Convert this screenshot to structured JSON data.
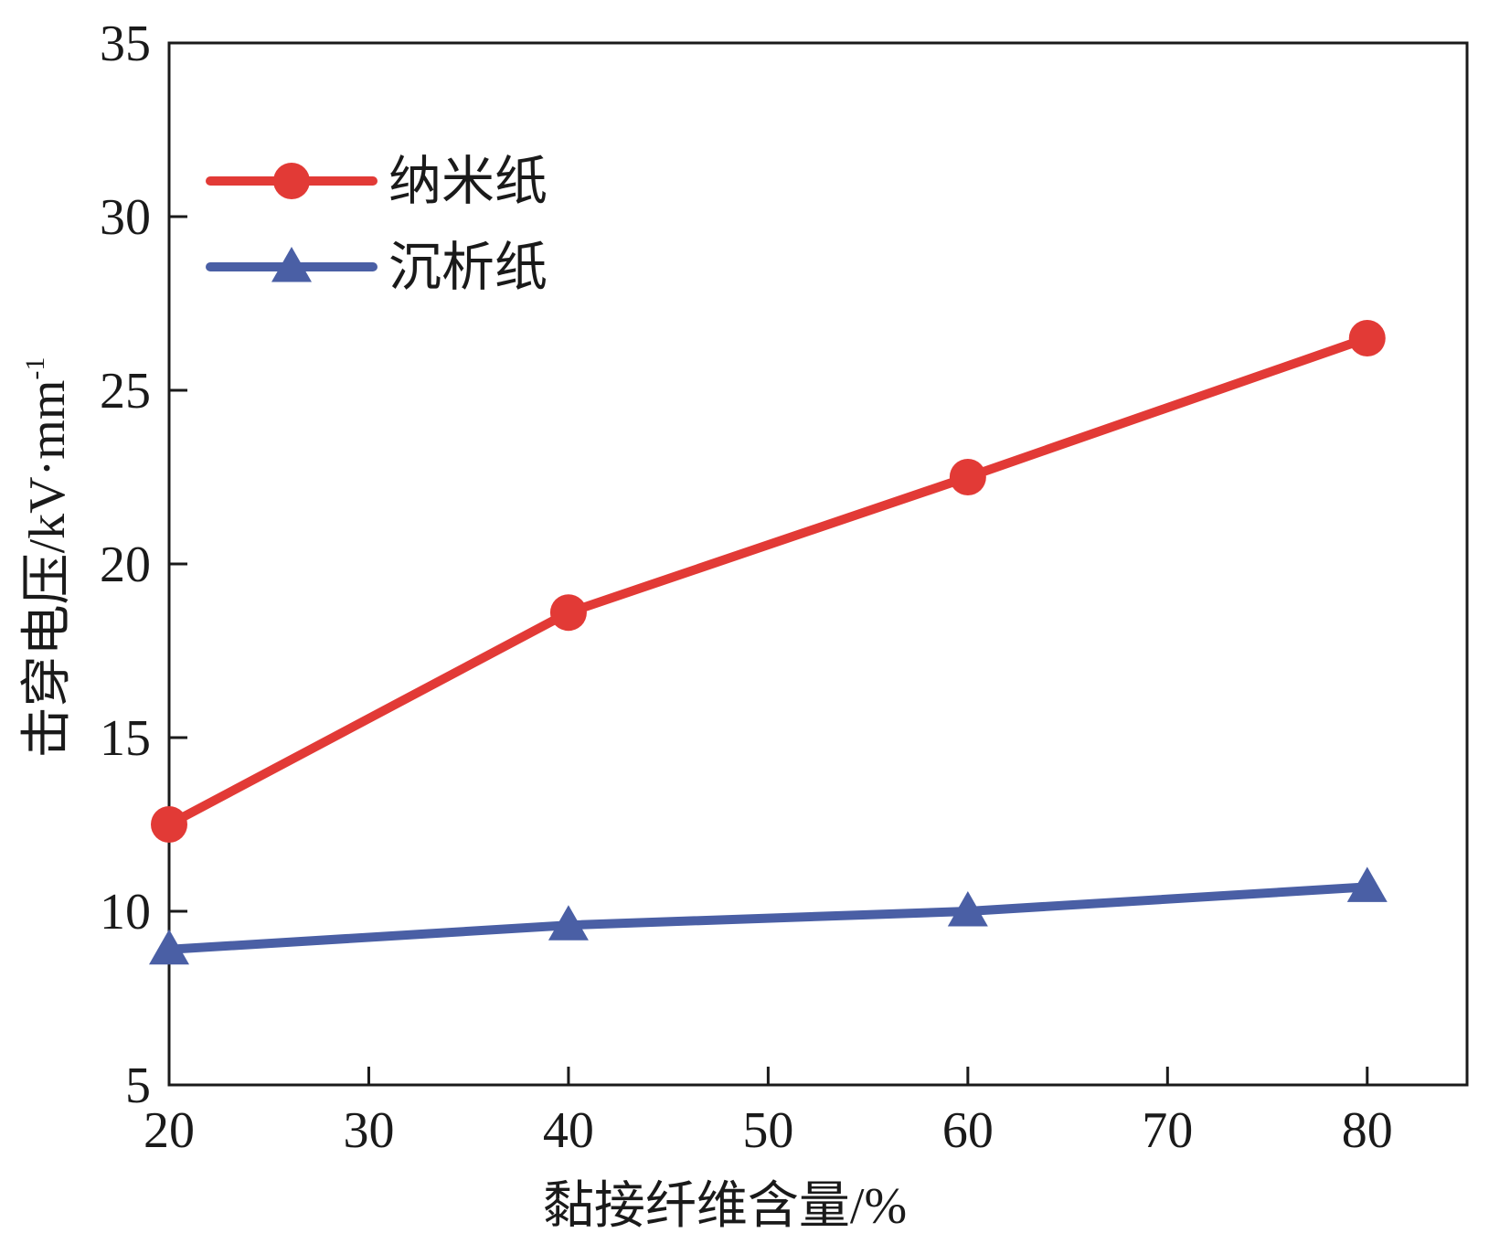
{
  "chart_data": {
    "type": "line",
    "title": "",
    "xlabel": "黏接纤维含量/%",
    "ylabel": {
      "main": "击穿电压/kV·mm",
      "superscript": "-1"
    },
    "xlim": [
      20,
      85
    ],
    "ylim": [
      5,
      35
    ],
    "xticks": [
      20,
      30,
      40,
      50,
      60,
      70,
      80
    ],
    "yticks": [
      5,
      10,
      15,
      20,
      25,
      30,
      35
    ],
    "grid": false,
    "legend_position": "top-left",
    "series": [
      {
        "name": "纳米纸",
        "color": "#e23a36",
        "marker": "circle",
        "x": [
          20,
          40,
          60,
          80
        ],
        "y": [
          12.5,
          18.6,
          22.5,
          26.5
        ]
      },
      {
        "name": "沉析纸",
        "color": "#4a5fa5",
        "marker": "triangle",
        "x": [
          20,
          40,
          60,
          80
        ],
        "y": [
          8.9,
          9.6,
          10.0,
          10.7
        ]
      }
    ]
  }
}
